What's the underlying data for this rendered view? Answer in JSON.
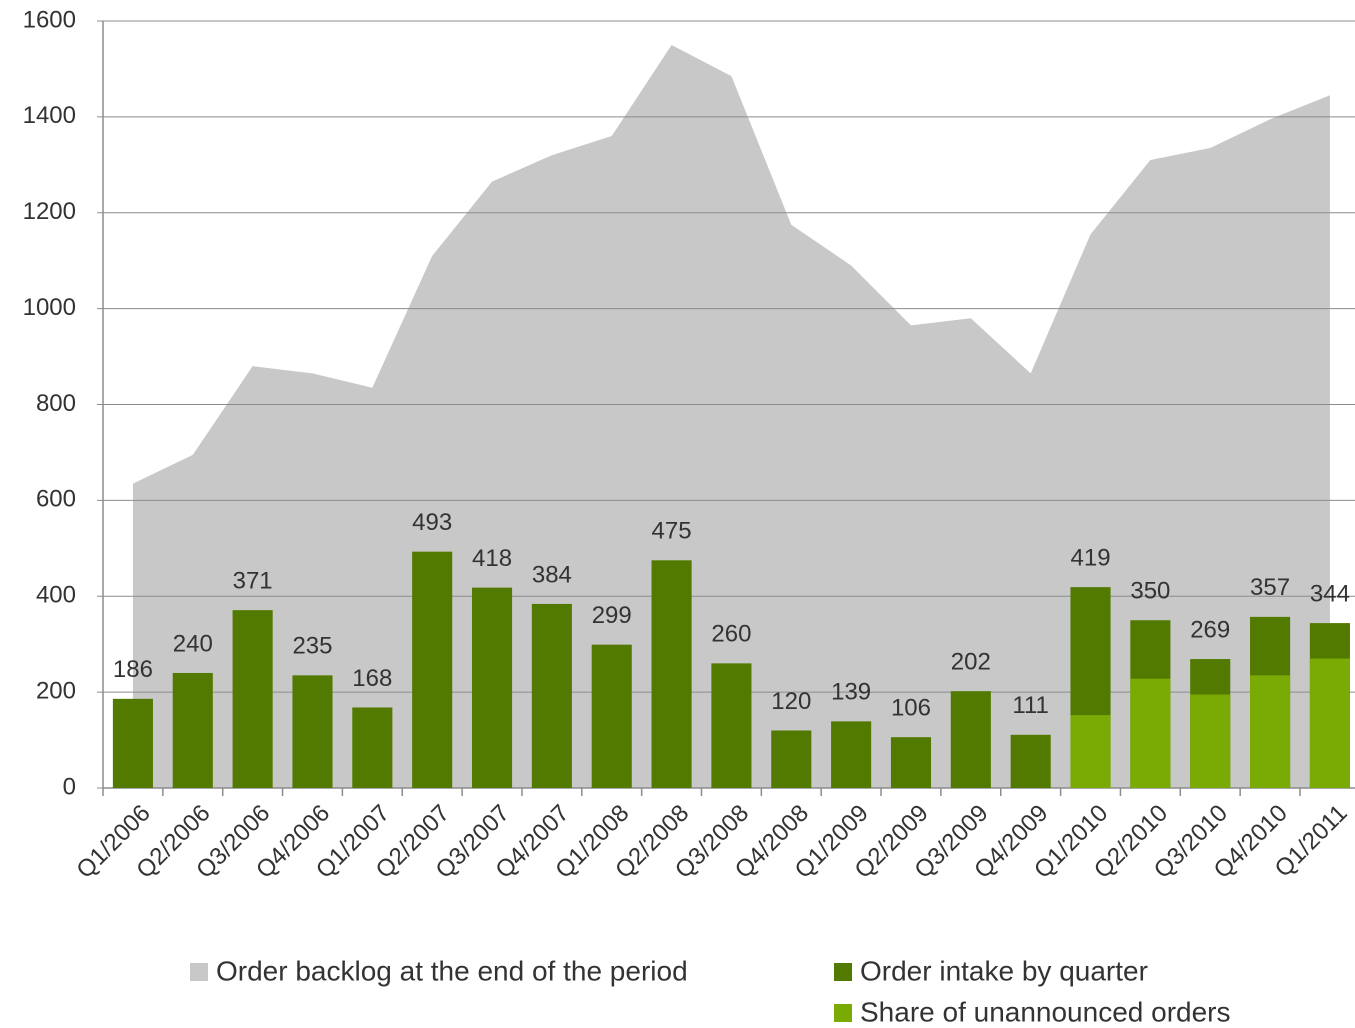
{
  "chart_data": {
    "type": "bar",
    "categories": [
      "Q1/2006",
      "Q2/2006",
      "Q3/2006",
      "Q4/2006",
      "Q1/2007",
      "Q2/2007",
      "Q3/2007",
      "Q4/2007",
      "Q1/2008",
      "Q2/2008",
      "Q3/2008",
      "Q4/2008",
      "Q1/2009",
      "Q2/2009",
      "Q3/2009",
      "Q4/2009",
      "Q1/2010",
      "Q2/2010",
      "Q3/2010",
      "Q4/2010",
      "Q1/2011"
    ],
    "series": [
      {
        "name": "Order backlog at the end of the period",
        "type": "area",
        "color": "#c8c8c8",
        "values": [
          635,
          695,
          880,
          865,
          835,
          1110,
          1265,
          1320,
          1360,
          1550,
          1485,
          1175,
          1090,
          965,
          980,
          865,
          1155,
          1310,
          1335,
          1395,
          1445
        ]
      },
      {
        "name": "Order intake by quarter",
        "type": "bar",
        "color": "#537a00",
        "values": [
          186,
          240,
          371,
          235,
          168,
          493,
          418,
          384,
          299,
          475,
          260,
          120,
          139,
          106,
          202,
          111,
          419,
          350,
          269,
          357,
          344
        ]
      },
      {
        "name": "Share of unannounced orders",
        "type": "bar",
        "color": "#7aab05",
        "values": [
          null,
          null,
          null,
          null,
          null,
          null,
          null,
          null,
          null,
          null,
          null,
          null,
          null,
          null,
          null,
          null,
          152,
          228,
          195,
          235,
          270
        ]
      }
    ],
    "ylim": [
      0,
      1600
    ],
    "yticks": [
      0,
      200,
      400,
      600,
      800,
      1000,
      1200,
      1400,
      1600
    ],
    "grid": true
  }
}
